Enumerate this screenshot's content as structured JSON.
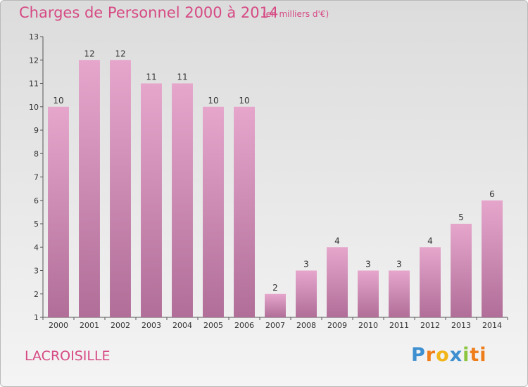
{
  "header": {
    "title": "Charges de Personnel 2000 à 2014",
    "subtitle": "(en milliers d'€)"
  },
  "footer": {
    "commune": "LACROISILLE",
    "logo": "Proxiti"
  },
  "colors": {
    "title": "#d64a84",
    "bar_top": "#e6a6cc",
    "bar_bottom": "#b06e98",
    "axis": "#555555"
  },
  "chart_data": {
    "type": "bar",
    "categories": [
      "2000",
      "2001",
      "2002",
      "2003",
      "2004",
      "2005",
      "2006",
      "2007",
      "2008",
      "2009",
      "2010",
      "2011",
      "2012",
      "2013",
      "2014"
    ],
    "values": [
      10,
      12,
      12,
      11,
      11,
      10,
      10,
      2,
      3,
      4,
      3,
      3,
      4,
      5,
      6
    ],
    "title": "Charges de Personnel 2000 à 2014",
    "subtitle": "(en milliers d'€)",
    "xlabel": "",
    "ylabel": "",
    "ylim": [
      1,
      13
    ],
    "yticks": [
      1,
      2,
      3,
      4,
      5,
      6,
      7,
      8,
      9,
      10,
      11,
      12,
      13
    ],
    "grid": false,
    "data_labels": true
  }
}
